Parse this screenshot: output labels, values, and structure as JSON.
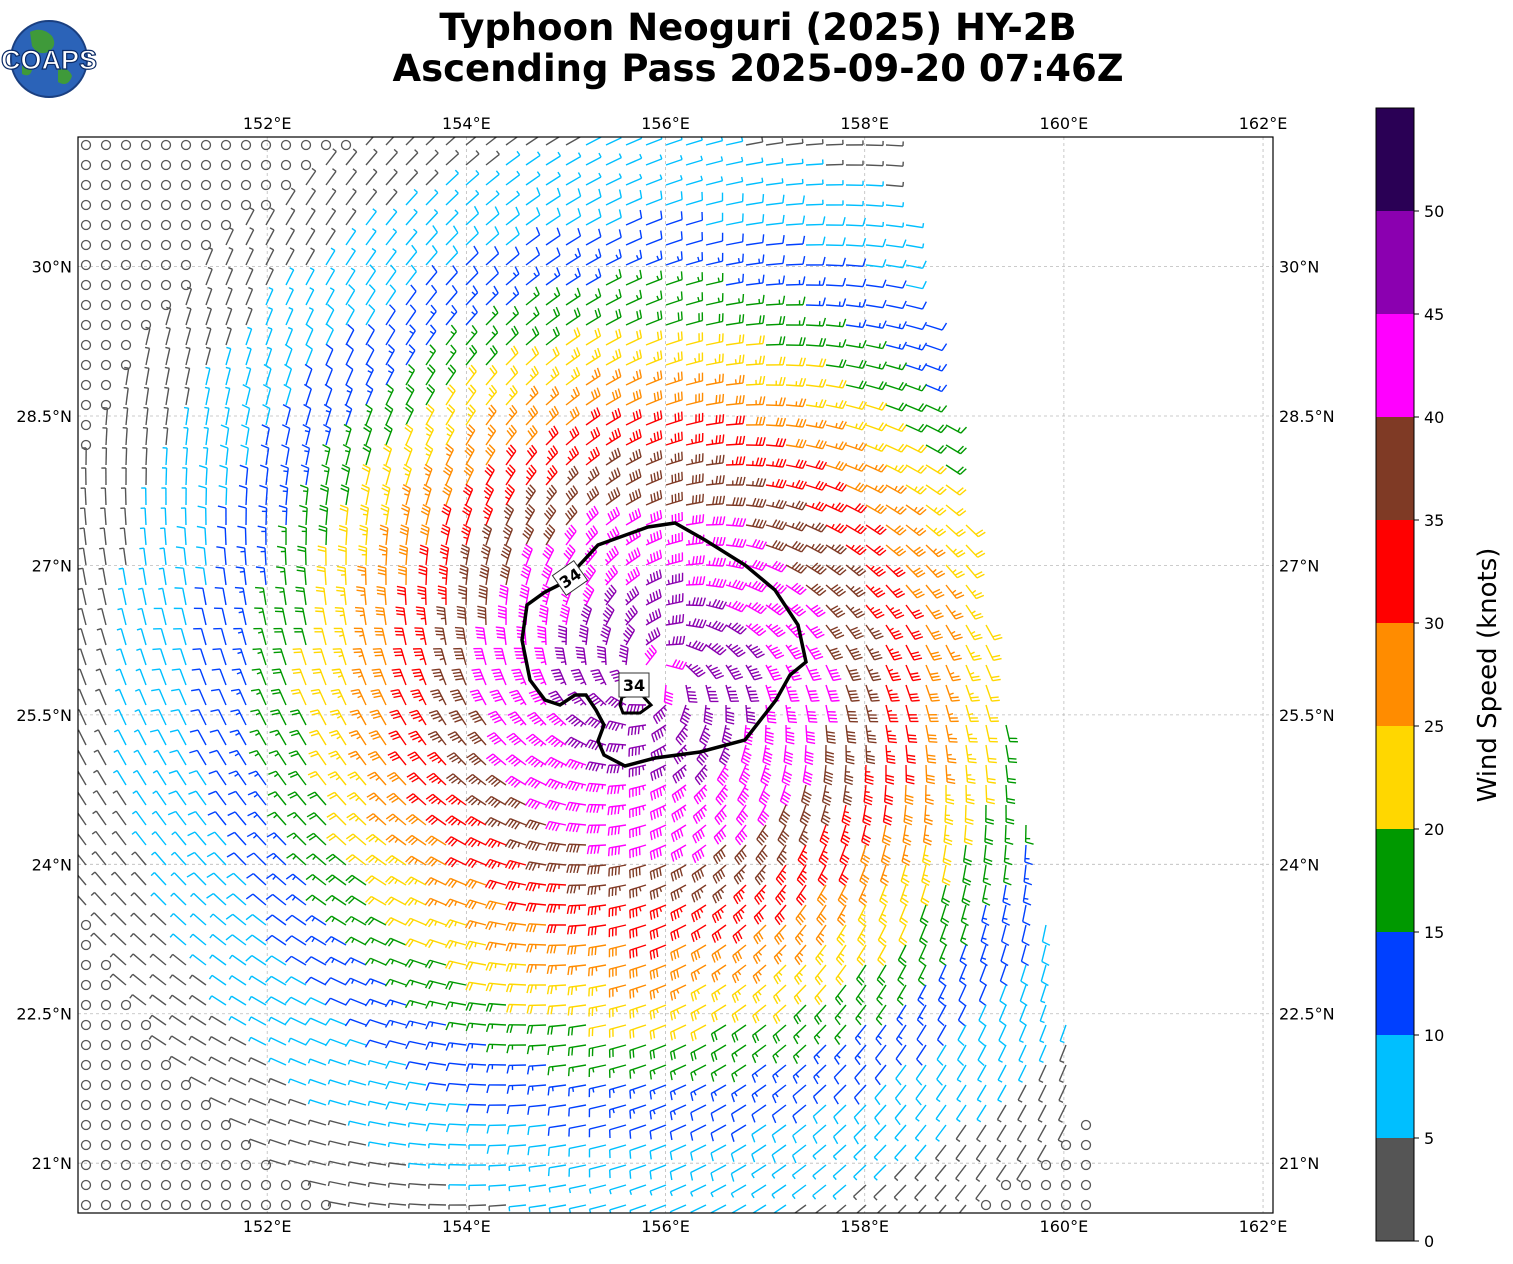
{
  "title": {
    "line1": "Typhoon Neoguri (2025) HY-2B",
    "line2": "Ascending Pass 2025-09-20 07:46Z"
  },
  "logo": {
    "text": "COAPS",
    "icon": "globe-icon"
  },
  "map": {
    "lon_range": [
      150.1,
      162.1
    ],
    "lat_range": [
      20.5,
      31.3
    ],
    "lon_ticks": [
      "152°E",
      "154°E",
      "156°E",
      "158°E",
      "160°E",
      "162°E"
    ],
    "lat_ticks": [
      "30°N",
      "28.5°N",
      "27°N",
      "25.5°N",
      "24°N",
      "22.5°N",
      "21°N"
    ],
    "gridlines": true,
    "storm_center": {
      "lon": 156.0,
      "lat": 26.0
    },
    "contour_label": "34",
    "contour_labels": [
      "34",
      "34"
    ]
  },
  "colorbar": {
    "label": "Wind Speed (knots)",
    "ticks": [
      "0",
      "5",
      "10",
      "15",
      "20",
      "25",
      "30",
      "35",
      "40",
      "45",
      "50"
    ],
    "bins": [
      {
        "min": 0,
        "max": 5,
        "color": "#555555"
      },
      {
        "min": 5,
        "max": 10,
        "color": "#00bfff"
      },
      {
        "min": 10,
        "max": 15,
        "color": "#0040ff"
      },
      {
        "min": 15,
        "max": 20,
        "color": "#009900"
      },
      {
        "min": 20,
        "max": 25,
        "color": "#ffd700"
      },
      {
        "min": 25,
        "max": 30,
        "color": "#ff8c00"
      },
      {
        "min": 30,
        "max": 35,
        "color": "#ff0000"
      },
      {
        "min": 35,
        "max": 40,
        "color": "#7f3a25"
      },
      {
        "min": 40,
        "max": 45,
        "color": "#ff00ff"
      },
      {
        "min": 45,
        "max": 50,
        "color": "#8b00b0"
      },
      {
        "min": 50,
        "max": 55,
        "color": "#2a0055"
      }
    ]
  }
}
